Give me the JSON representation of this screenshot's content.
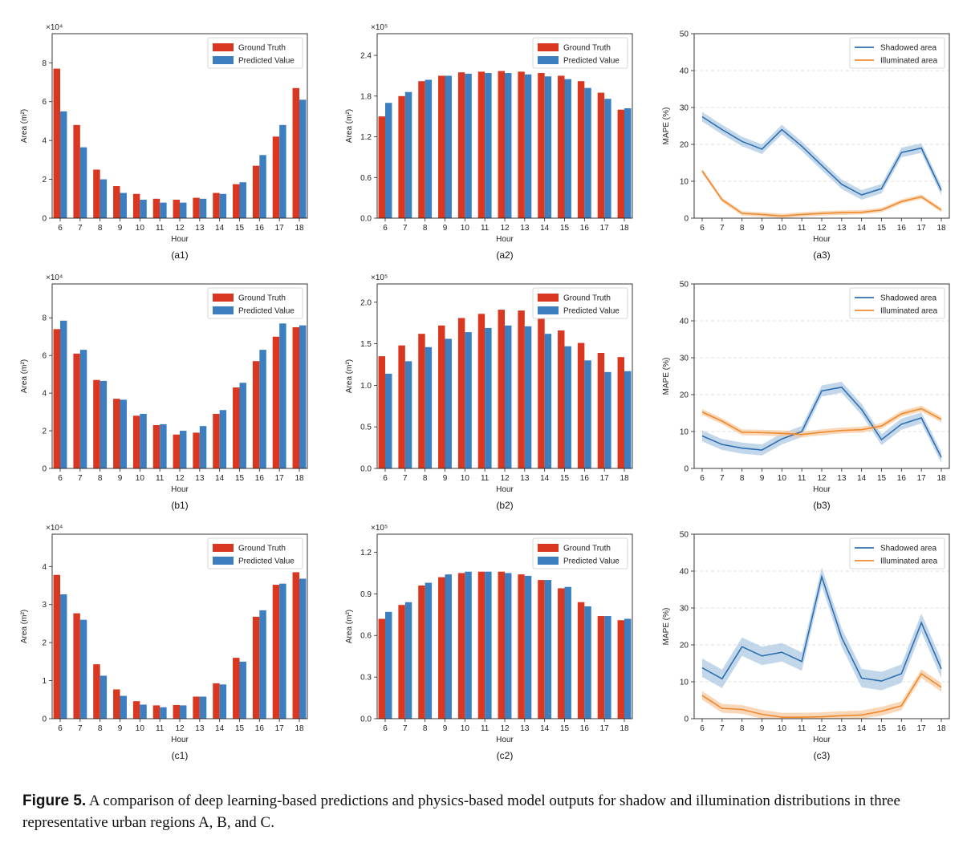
{
  "colors": {
    "bar_truth": "#d9371f",
    "bar_pred": "#3b7fc0",
    "line_shadow": "#2e6fb0",
    "line_illum": "#f0892d",
    "band_shadow": "#a9c6e3",
    "band_illum": "#f7c79b"
  },
  "figure_caption": {
    "label": "Figure 5.",
    "text": "A comparison of deep learning-based predictions and physics-based model outputs for shadow and illumination distributions in three representative urban regions A, B, and C."
  },
  "chart_data": [
    {
      "id": "a1",
      "type": "bar",
      "panel_label": "(a1)",
      "xlabel": "Hour",
      "ylabel": "Area (m²)",
      "multiplier": "×10⁴",
      "categories": [
        "6",
        "7",
        "8",
        "9",
        "10",
        "11",
        "12",
        "13",
        "14",
        "15",
        "16",
        "17",
        "18"
      ],
      "series": [
        {
          "name": "Ground Truth",
          "values": [
            7.7,
            4.8,
            2.5,
            1.65,
            1.25,
            1.0,
            0.95,
            1.05,
            1.3,
            1.75,
            2.7,
            4.2,
            6.7
          ]
        },
        {
          "name": "Predicted Value",
          "values": [
            5.5,
            3.65,
            2.0,
            1.3,
            0.95,
            0.8,
            0.8,
            1.0,
            1.25,
            1.85,
            3.25,
            4.8,
            6.1
          ]
        }
      ],
      "ylim": [
        0,
        9.5
      ],
      "yticks": [
        0,
        2,
        4,
        6,
        8
      ],
      "ytick_labels": [
        "0",
        "2",
        "4",
        "6",
        "8"
      ],
      "legend": "top-right",
      "grid": false
    },
    {
      "id": "a2",
      "type": "bar",
      "panel_label": "(a2)",
      "xlabel": "Hour",
      "ylabel": "Area (m²)",
      "multiplier": "×10⁵",
      "categories": [
        "6",
        "7",
        "8",
        "9",
        "10",
        "11",
        "12",
        "13",
        "14",
        "15",
        "16",
        "17",
        "18"
      ],
      "series": [
        {
          "name": "Ground Truth",
          "values": [
            1.5,
            1.8,
            2.02,
            2.1,
            2.15,
            2.16,
            2.17,
            2.16,
            2.14,
            2.1,
            2.02,
            1.85,
            1.6
          ]
        },
        {
          "name": "Predicted Value",
          "values": [
            1.7,
            1.86,
            2.04,
            2.1,
            2.13,
            2.14,
            2.14,
            2.12,
            2.09,
            2.05,
            1.92,
            1.76,
            1.62
          ]
        }
      ],
      "ylim": [
        0,
        2.72
      ],
      "yticks": [
        0,
        0.6,
        1.2,
        1.8,
        2.4
      ],
      "ytick_labels": [
        "0.0",
        "0.6",
        "1.2",
        "1.8",
        "2.4"
      ],
      "legend": "top-right",
      "grid": false
    },
    {
      "id": "a3",
      "type": "line",
      "panel_label": "(a3)",
      "xlabel": "Hour",
      "ylabel": "MAPE (%)",
      "x": [
        6,
        7,
        8,
        9,
        10,
        11,
        12,
        13,
        14,
        15,
        16,
        17,
        18
      ],
      "series": [
        {
          "name": "Shadowed area",
          "values": [
            27.5,
            24,
            20.8,
            18.7,
            24,
            19.5,
            14.3,
            9.2,
            6.3,
            8,
            17.8,
            19,
            7.5
          ],
          "band": 1.3
        },
        {
          "name": "Illuminated area",
          "values": [
            12.8,
            5,
            1.3,
            1.0,
            0.6,
            1.0,
            1.3,
            1.5,
            1.6,
            2.2,
            4.5,
            5.8,
            2.2
          ],
          "band": 0.6
        }
      ],
      "ylim": [
        0,
        50
      ],
      "yticks": [
        0,
        10,
        20,
        30,
        40,
        50
      ],
      "ytick_labels": [
        "0",
        "10",
        "20",
        "30",
        "40",
        "50"
      ],
      "legend": "top-right",
      "grid": true
    },
    {
      "id": "b1",
      "type": "bar",
      "panel_label": "(b1)",
      "xlabel": "Hour",
      "ylabel": "Area (m²)",
      "multiplier": "×10⁴",
      "categories": [
        "6",
        "7",
        "8",
        "9",
        "10",
        "11",
        "12",
        "13",
        "14",
        "15",
        "16",
        "17",
        "18"
      ],
      "series": [
        {
          "name": "Ground Truth",
          "values": [
            7.4,
            6.1,
            4.7,
            3.7,
            2.8,
            2.3,
            1.8,
            1.9,
            2.9,
            4.3,
            5.7,
            7.0,
            7.5
          ]
        },
        {
          "name": "Predicted Value",
          "values": [
            7.85,
            6.3,
            4.65,
            3.65,
            2.9,
            2.35,
            2.0,
            2.25,
            3.1,
            4.55,
            6.3,
            7.7,
            7.6
          ]
        }
      ],
      "ylim": [
        0,
        9.8
      ],
      "yticks": [
        0,
        2,
        4,
        6,
        8
      ],
      "ytick_labels": [
        "0",
        "2",
        "4",
        "6",
        "8"
      ],
      "legend": "top-right",
      "grid": false
    },
    {
      "id": "b2",
      "type": "bar",
      "panel_label": "(b2)",
      "xlabel": "Hour",
      "ylabel": "Area (m²)",
      "multiplier": "×10⁵",
      "categories": [
        "6",
        "7",
        "8",
        "9",
        "10",
        "11",
        "12",
        "13",
        "14",
        "15",
        "16",
        "17",
        "18"
      ],
      "series": [
        {
          "name": "Ground Truth",
          "values": [
            1.35,
            1.48,
            1.62,
            1.72,
            1.81,
            1.86,
            1.91,
            1.9,
            1.8,
            1.66,
            1.51,
            1.39,
            1.34
          ]
        },
        {
          "name": "Predicted Value",
          "values": [
            1.14,
            1.29,
            1.46,
            1.56,
            1.64,
            1.69,
            1.72,
            1.71,
            1.62,
            1.47,
            1.3,
            1.16,
            1.17
          ]
        }
      ],
      "ylim": [
        0,
        2.22
      ],
      "yticks": [
        0,
        0.5,
        1.0,
        1.5,
        2.0
      ],
      "ytick_labels": [
        "0.0",
        "0.5",
        "1.0",
        "1.5",
        "2.0"
      ],
      "legend": "top-right",
      "grid": false
    },
    {
      "id": "b3",
      "type": "line",
      "panel_label": "(b3)",
      "xlabel": "Hour",
      "ylabel": "MAPE (%)",
      "x": [
        6,
        7,
        8,
        9,
        10,
        11,
        12,
        13,
        14,
        15,
        16,
        17,
        18
      ],
      "series": [
        {
          "name": "Shadowed area",
          "values": [
            8.8,
            6.5,
            5.5,
            5,
            8,
            10,
            21,
            22,
            16,
            7.8,
            12,
            13.7,
            3
          ],
          "band": 1.5
        },
        {
          "name": "Illuminated area",
          "values": [
            15.3,
            12.8,
            9.8,
            9.7,
            9.5,
            9.2,
            9.8,
            10.3,
            10.5,
            11.5,
            14.8,
            16.2,
            13.3
          ],
          "band": 0.8
        }
      ],
      "ylim": [
        0,
        50
      ],
      "yticks": [
        0,
        10,
        20,
        30,
        40,
        50
      ],
      "ytick_labels": [
        "0",
        "10",
        "20",
        "30",
        "40",
        "50"
      ],
      "legend": "top-right",
      "grid": true
    },
    {
      "id": "c1",
      "type": "bar",
      "panel_label": "(c1)",
      "xlabel": "Hour",
      "ylabel": "Area (m²)",
      "multiplier": "×10⁴",
      "categories": [
        "6",
        "7",
        "8",
        "9",
        "10",
        "11",
        "12",
        "13",
        "14",
        "15",
        "16",
        "17",
        "18"
      ],
      "series": [
        {
          "name": "Ground Truth",
          "values": [
            3.78,
            2.77,
            1.43,
            0.77,
            0.46,
            0.35,
            0.36,
            0.58,
            0.93,
            1.6,
            2.68,
            3.52,
            3.85
          ]
        },
        {
          "name": "Predicted Value",
          "values": [
            3.27,
            2.6,
            1.13,
            0.6,
            0.37,
            0.3,
            0.35,
            0.58,
            0.9,
            1.5,
            2.85,
            3.55,
            3.68
          ]
        }
      ],
      "ylim": [
        0,
        4.85
      ],
      "yticks": [
        0,
        1,
        2,
        3,
        4
      ],
      "ytick_labels": [
        "0",
        "1",
        "2",
        "3",
        "4"
      ],
      "legend": "top-right",
      "grid": false
    },
    {
      "id": "c2",
      "type": "bar",
      "panel_label": "(c2)",
      "xlabel": "Hour",
      "ylabel": "Area (m²)",
      "multiplier": "×10⁵",
      "categories": [
        "6",
        "7",
        "8",
        "9",
        "10",
        "11",
        "12",
        "13",
        "14",
        "15",
        "16",
        "17",
        "18"
      ],
      "series": [
        {
          "name": "Ground Truth",
          "values": [
            0.72,
            0.82,
            0.96,
            1.02,
            1.05,
            1.06,
            1.06,
            1.04,
            1.0,
            0.94,
            0.84,
            0.74,
            0.71
          ]
        },
        {
          "name": "Predicted Value",
          "values": [
            0.77,
            0.84,
            0.98,
            1.04,
            1.06,
            1.06,
            1.05,
            1.03,
            1.0,
            0.95,
            0.81,
            0.74,
            0.72
          ]
        }
      ],
      "ylim": [
        0,
        1.33
      ],
      "yticks": [
        0,
        0.3,
        0.6,
        0.9,
        1.2
      ],
      "ytick_labels": [
        "0.0",
        "0.3",
        "0.6",
        "0.9",
        "1.2"
      ],
      "legend": "top-right",
      "grid": false
    },
    {
      "id": "c3",
      "type": "line",
      "panel_label": "(c3)",
      "xlabel": "Hour",
      "ylabel": "MAPE (%)",
      "x": [
        6,
        7,
        8,
        9,
        10,
        11,
        12,
        13,
        14,
        15,
        16,
        17,
        18
      ],
      "series": [
        {
          "name": "Shadowed area",
          "values": [
            13.8,
            10.8,
            19.5,
            17,
            18,
            15.5,
            38.5,
            22,
            11,
            10.2,
            12.2,
            26,
            13.5
          ],
          "band": 2.5
        },
        {
          "name": "Illuminated area",
          "values": [
            6.3,
            2.8,
            2.5,
            1.2,
            0.4,
            0.4,
            0.5,
            0.8,
            1.0,
            2.0,
            3.5,
            12.2,
            8.5
          ],
          "band": 1.2
        }
      ],
      "ylim": [
        0,
        50
      ],
      "yticks": [
        0,
        10,
        20,
        30,
        40,
        50
      ],
      "ytick_labels": [
        "0",
        "10",
        "20",
        "30",
        "40",
        "50"
      ],
      "legend": "top-right",
      "grid": true
    }
  ]
}
